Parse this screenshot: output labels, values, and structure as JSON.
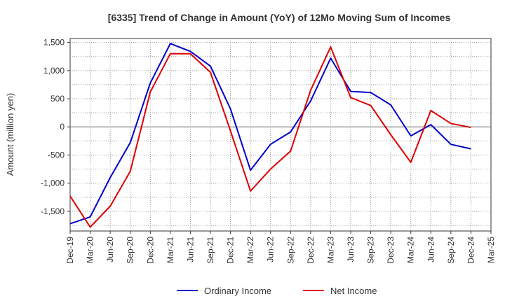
{
  "chart_data": {
    "type": "line",
    "title": "[6335]  Trend of Change in Amount (YoY) of 12Mo Moving Sum of Incomes",
    "xlabel": "",
    "ylabel": "Amount (million yen)",
    "ylim": [
      -1850,
      1570
    ],
    "yticks": [
      1500,
      1000,
      500,
      0,
      -500,
      -1000,
      -1500
    ],
    "ytick_labels": [
      "1,500",
      "1,000",
      "500",
      "0",
      "-500",
      "-1,000",
      "-1,500"
    ],
    "categories": [
      "Dec-19",
      "Mar-20",
      "Jun-20",
      "Sep-20",
      "Dec-20",
      "Mar-21",
      "Jun-21",
      "Sep-21",
      "Dec-21",
      "Mar-22",
      "Jun-22",
      "Sep-22",
      "Dec-22",
      "Mar-23",
      "Jun-23",
      "Sep-23",
      "Dec-23",
      "Mar-24",
      "Jun-24",
      "Sep-24",
      "Dec-24",
      "Mar-25"
    ],
    "grid": true,
    "legend_position": "bottom-center",
    "series": [
      {
        "name": "Ordinary Income",
        "color": "#0000cc",
        "values": [
          -1720,
          -1600,
          -900,
          -280,
          780,
          1480,
          1340,
          1080,
          320,
          -770,
          -310,
          -90,
          460,
          1220,
          630,
          610,
          390,
          -160,
          40,
          -310,
          -390,
          null
        ]
      },
      {
        "name": "Net Income",
        "color": "#dd0000",
        "values": [
          -1230,
          -1780,
          -1410,
          -790,
          620,
          1300,
          1300,
          970,
          -70,
          -1140,
          -750,
          -430,
          650,
          1420,
          520,
          380,
          -140,
          -630,
          290,
          60,
          -10,
          null
        ]
      }
    ]
  }
}
